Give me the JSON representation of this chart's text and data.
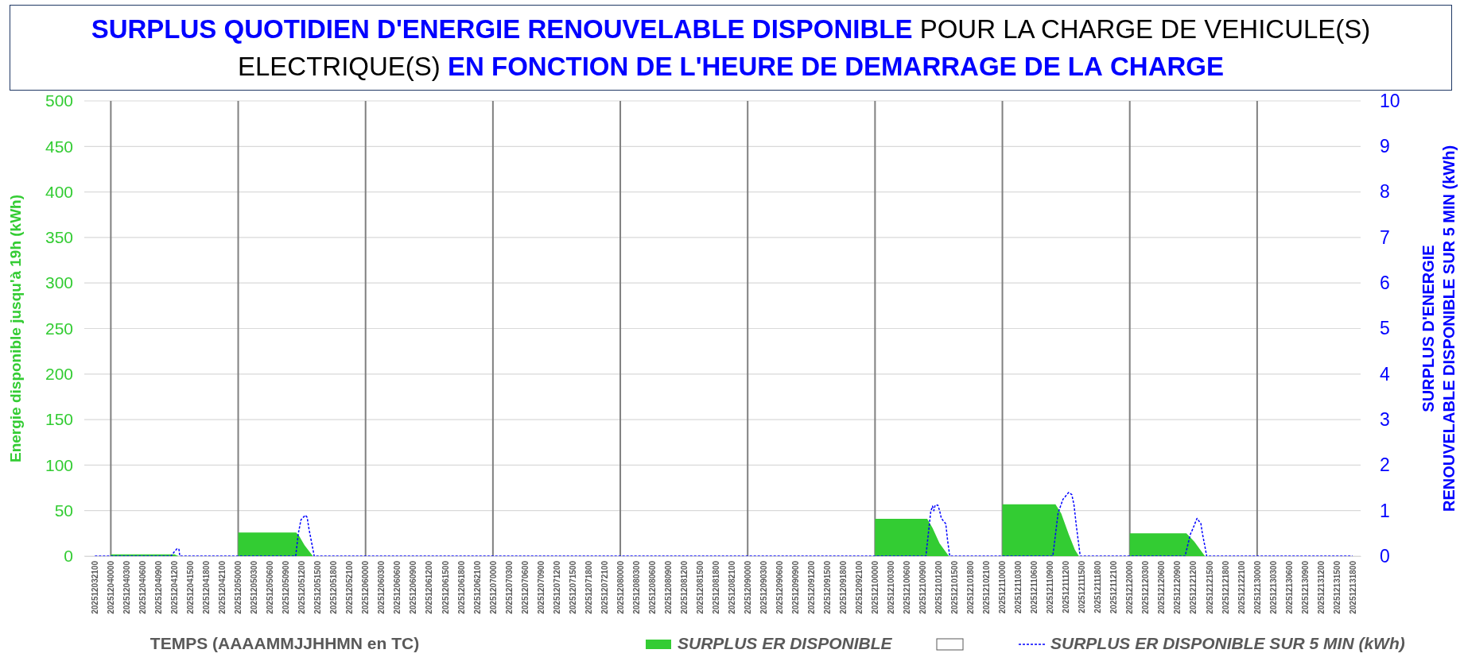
{
  "chart_data": {
    "type": "area",
    "title": "SURPLUS QUOTIDIEN D'ENERGIE RENOUVELABLE DISPONIBLE POUR LA CHARGE DE VEHICULE(S) ELECTRIQUE(S) EN FONCTION DE L'HEURE DE DEMARRAGE DE LA CHARGE",
    "xlabel": "TEMPS (AAAAMMJJHHMN en TC)",
    "ylabel": "Energie disponible jusqu'à 19h (kWh)",
    "y2label": "SURPLUS D'ENERGIE RENOUVELABLE DISPONIBLE SUR 5 MIN (kWh)",
    "xlim": [
      "2025-12-03T19:00",
      "2025-12-13T19:30"
    ],
    "xticks": [
      {
        "value": "2025-12-03T21:00",
        "label": "202512032100"
      },
      {
        "value": "2025-12-04T00:00",
        "label": "202512040000"
      },
      {
        "value": "2025-12-04T03:00",
        "label": "202512040300"
      },
      {
        "value": "2025-12-04T06:00",
        "label": "202512040600"
      },
      {
        "value": "2025-12-04T09:00",
        "label": "202512040900"
      },
      {
        "value": "2025-12-04T12:00",
        "label": "202512041200"
      },
      {
        "value": "2025-12-04T15:00",
        "label": "202512041500"
      },
      {
        "value": "2025-12-04T18:00",
        "label": "202512041800"
      },
      {
        "value": "2025-12-04T21:00",
        "label": "202512042100"
      },
      {
        "value": "2025-12-05T00:00",
        "label": "202512050000"
      },
      {
        "value": "2025-12-05T03:00",
        "label": "202512050300"
      },
      {
        "value": "2025-12-05T06:00",
        "label": "202512050600"
      },
      {
        "value": "2025-12-05T09:00",
        "label": "202512050900"
      },
      {
        "value": "2025-12-05T12:00",
        "label": "202512051200"
      },
      {
        "value": "2025-12-05T15:00",
        "label": "202512051500"
      },
      {
        "value": "2025-12-05T18:00",
        "label": "202512051800"
      },
      {
        "value": "2025-12-05T21:00",
        "label": "202512052100"
      },
      {
        "value": "2025-12-06T00:00",
        "label": "202512060000"
      },
      {
        "value": "2025-12-06T03:00",
        "label": "202512060300"
      },
      {
        "value": "2025-12-06T06:00",
        "label": "202512060600"
      },
      {
        "value": "2025-12-06T09:00",
        "label": "202512060900"
      },
      {
        "value": "2025-12-06T12:00",
        "label": "202512061200"
      },
      {
        "value": "2025-12-06T15:00",
        "label": "202512061500"
      },
      {
        "value": "2025-12-06T18:00",
        "label": "202512061800"
      },
      {
        "value": "2025-12-06T21:00",
        "label": "202512062100"
      },
      {
        "value": "2025-12-07T00:00",
        "label": "202512070000"
      },
      {
        "value": "2025-12-07T03:00",
        "label": "202512070300"
      },
      {
        "value": "2025-12-07T06:00",
        "label": "202512070600"
      },
      {
        "value": "2025-12-07T09:00",
        "label": "202512070900"
      },
      {
        "value": "2025-12-07T12:00",
        "label": "202512071200"
      },
      {
        "value": "2025-12-07T15:00",
        "label": "202512071500"
      },
      {
        "value": "2025-12-07T18:00",
        "label": "202512071800"
      },
      {
        "value": "2025-12-07T21:00",
        "label": "202512072100"
      },
      {
        "value": "2025-12-08T00:00",
        "label": "202512080000"
      },
      {
        "value": "2025-12-08T03:00",
        "label": "202512080300"
      },
      {
        "value": "2025-12-08T06:00",
        "label": "202512080600"
      },
      {
        "value": "2025-12-08T09:00",
        "label": "202512080900"
      },
      {
        "value": "2025-12-08T12:00",
        "label": "202512081200"
      },
      {
        "value": "2025-12-08T15:00",
        "label": "202512081500"
      },
      {
        "value": "2025-12-08T18:00",
        "label": "202512081800"
      },
      {
        "value": "2025-12-08T21:00",
        "label": "202512082100"
      },
      {
        "value": "2025-12-09T00:00",
        "label": "202512090000"
      },
      {
        "value": "2025-12-09T03:00",
        "label": "202512090300"
      },
      {
        "value": "2025-12-09T06:00",
        "label": "202512090600"
      },
      {
        "value": "2025-12-09T09:00",
        "label": "202512090900"
      },
      {
        "value": "2025-12-09T12:00",
        "label": "202512091200"
      },
      {
        "value": "2025-12-09T15:00",
        "label": "202512091500"
      },
      {
        "value": "2025-12-09T18:00",
        "label": "202512091800"
      },
      {
        "value": "2025-12-09T21:00",
        "label": "202512092100"
      },
      {
        "value": "2025-12-10T00:00",
        "label": "202512100000"
      },
      {
        "value": "2025-12-10T03:00",
        "label": "202512100300"
      },
      {
        "value": "2025-12-10T06:00",
        "label": "202512100600"
      },
      {
        "value": "2025-12-10T09:00",
        "label": "202512100900"
      },
      {
        "value": "2025-12-10T12:00",
        "label": "202512101200"
      },
      {
        "value": "2025-12-10T15:00",
        "label": "202512101500"
      },
      {
        "value": "2025-12-10T18:00",
        "label": "202512101800"
      },
      {
        "value": "2025-12-10T21:00",
        "label": "202512102100"
      },
      {
        "value": "2025-12-11T00:00",
        "label": "202512110000"
      },
      {
        "value": "2025-12-11T03:00",
        "label": "202512110300"
      },
      {
        "value": "2025-12-11T06:00",
        "label": "202512110600"
      },
      {
        "value": "2025-12-11T09:00",
        "label": "202512110900"
      },
      {
        "value": "2025-12-11T12:00",
        "label": "202512111200"
      },
      {
        "value": "2025-12-11T15:00",
        "label": "202512111500"
      },
      {
        "value": "2025-12-11T18:00",
        "label": "202512111800"
      },
      {
        "value": "2025-12-11T21:00",
        "label": "202512112100"
      },
      {
        "value": "2025-12-12T00:00",
        "label": "202512120000"
      },
      {
        "value": "2025-12-12T03:00",
        "label": "202512120300"
      },
      {
        "value": "2025-12-12T06:00",
        "label": "202512120600"
      },
      {
        "value": "2025-12-12T09:00",
        "label": "202512120900"
      },
      {
        "value": "2025-12-12T12:00",
        "label": "202512121200"
      },
      {
        "value": "2025-12-12T15:00",
        "label": "202512121500"
      },
      {
        "value": "2025-12-12T18:00",
        "label": "202512121800"
      },
      {
        "value": "2025-12-12T21:00",
        "label": "202512122100"
      },
      {
        "value": "2025-12-13T00:00",
        "label": "202512130000"
      },
      {
        "value": "2025-12-13T03:00",
        "label": "202512130300"
      },
      {
        "value": "2025-12-13T06:00",
        "label": "202512130600"
      },
      {
        "value": "2025-12-13T09:00",
        "label": "202512130900"
      },
      {
        "value": "2025-12-13T12:00",
        "label": "202512131200"
      },
      {
        "value": "2025-12-13T15:00",
        "label": "202512131500"
      },
      {
        "value": "2025-12-13T18:00",
        "label": "202512131800"
      }
    ],
    "ylim": [
      0,
      500
    ],
    "yticks": [
      0,
      50,
      100,
      150,
      200,
      250,
      300,
      350,
      400,
      450,
      500
    ],
    "y2lim": [
      0,
      10
    ],
    "y2ticks": [
      0,
      1,
      2,
      3,
      4,
      5,
      6,
      7,
      8,
      9,
      10
    ],
    "grid": "y",
    "legend": "bottom",
    "ref_lines": [
      {
        "axis": "x",
        "value": "2025-12-04T00:00",
        "color": "#808080"
      },
      {
        "axis": "x",
        "value": "2025-12-05T00:00",
        "color": "#808080"
      },
      {
        "axis": "x",
        "value": "2025-12-06T00:00",
        "color": "#808080"
      },
      {
        "axis": "x",
        "value": "2025-12-07T00:00",
        "color": "#808080"
      },
      {
        "axis": "x",
        "value": "2025-12-08T00:00",
        "color": "#808080"
      },
      {
        "axis": "x",
        "value": "2025-12-09T00:00",
        "color": "#808080"
      },
      {
        "axis": "x",
        "value": "2025-12-10T00:00",
        "color": "#808080"
      },
      {
        "axis": "x",
        "value": "2025-12-11T00:00",
        "color": "#808080"
      },
      {
        "axis": "x",
        "value": "2025-12-12T00:00",
        "color": "#808080"
      },
      {
        "axis": "x",
        "value": "2025-12-13T00:00",
        "color": "#808080"
      }
    ],
    "series": [
      {
        "name": "SURPLUS ER DISPONIBLE",
        "color": "#33cc33",
        "x": [
          "2025-12-03T21:00",
          "2025-12-04T00:00",
          "2025-12-04T00:00",
          "2025-12-04T12:00",
          "2025-12-04T12:45",
          "2025-12-05T00:00",
          "2025-12-05T00:00",
          "2025-12-05T10:55",
          "2025-12-05T11:30",
          "2025-12-05T12:30",
          "2025-12-05T14:05",
          "2025-12-10T00:00",
          "2025-12-10T00:00",
          "2025-12-10T09:50",
          "2025-12-10T10:50",
          "2025-12-10T12:10",
          "2025-12-10T13:55",
          "2025-12-11T00:00",
          "2025-12-11T00:00",
          "2025-12-11T10:00",
          "2025-12-11T11:05",
          "2025-12-11T12:30",
          "2025-12-11T13:40",
          "2025-12-11T14:25",
          "2025-12-12T00:00",
          "2025-12-12T00:00",
          "2025-12-12T10:40",
          "2025-12-12T12:10",
          "2025-12-12T14:10",
          "2025-12-13T18:00"
        ],
        "values": [
          0,
          0,
          2,
          2,
          0,
          0,
          26,
          26,
          22,
          12,
          0,
          0,
          41,
          41,
          31,
          14,
          0,
          0,
          57,
          57,
          47,
          24,
          7,
          0,
          0,
          25,
          25,
          16,
          0,
          0
        ]
      },
      {
        "name": "SURPLUS ER DISPONIBLE SUR 5 MIN (kWh)",
        "type": "line",
        "axis": "y2",
        "color": "#0000ff",
        "line_style": "dashed",
        "x": [
          "2025-12-03T21:00",
          "2025-12-04T11:20",
          "2025-12-04T11:40",
          "2025-12-04T12:00",
          "2025-12-04T12:30",
          "2025-12-04T12:50",
          "2025-12-04T13:00",
          "2025-12-05T10:50",
          "2025-12-05T11:20",
          "2025-12-05T11:50",
          "2025-12-05T12:40",
          "2025-12-05T13:00",
          "2025-12-05T13:20",
          "2025-12-05T13:50",
          "2025-12-05T14:20",
          "2025-12-10T09:35",
          "2025-12-10T10:30",
          "2025-12-10T10:50",
          "2025-12-10T11:05",
          "2025-12-10T11:20",
          "2025-12-10T11:50",
          "2025-12-10T12:10",
          "2025-12-10T12:30",
          "2025-12-10T13:20",
          "2025-12-10T13:40",
          "2025-12-10T14:05",
          "2025-12-11T09:30",
          "2025-12-11T10:30",
          "2025-12-11T11:25",
          "2025-12-11T12:30",
          "2025-12-11T13:05",
          "2025-12-11T13:30",
          "2025-12-11T13:55",
          "2025-12-11T14:30",
          "2025-12-11T14:40",
          "2025-12-12T10:25",
          "2025-12-12T11:25",
          "2025-12-12T11:55",
          "2025-12-12T12:40",
          "2025-12-12T13:25",
          "2025-12-12T13:40",
          "2025-12-12T14:10",
          "2025-12-12T14:30",
          "2025-12-13T18:00"
        ],
        "values": [
          0,
          0,
          0.05,
          0.1,
          0.17,
          0.15,
          0,
          0,
          0.5,
          0.8,
          0.9,
          0.85,
          0.6,
          0.3,
          0,
          0,
          0.98,
          1.1,
          1.0,
          1.12,
          1.12,
          1.0,
          0.83,
          0.71,
          0.35,
          0,
          0,
          0.95,
          1.25,
          1.4,
          1.35,
          1.12,
          0.68,
          0.15,
          0,
          0,
          0.48,
          0.61,
          0.83,
          0.71,
          0.51,
          0.21,
          0,
          0
        ]
      }
    ]
  }
}
